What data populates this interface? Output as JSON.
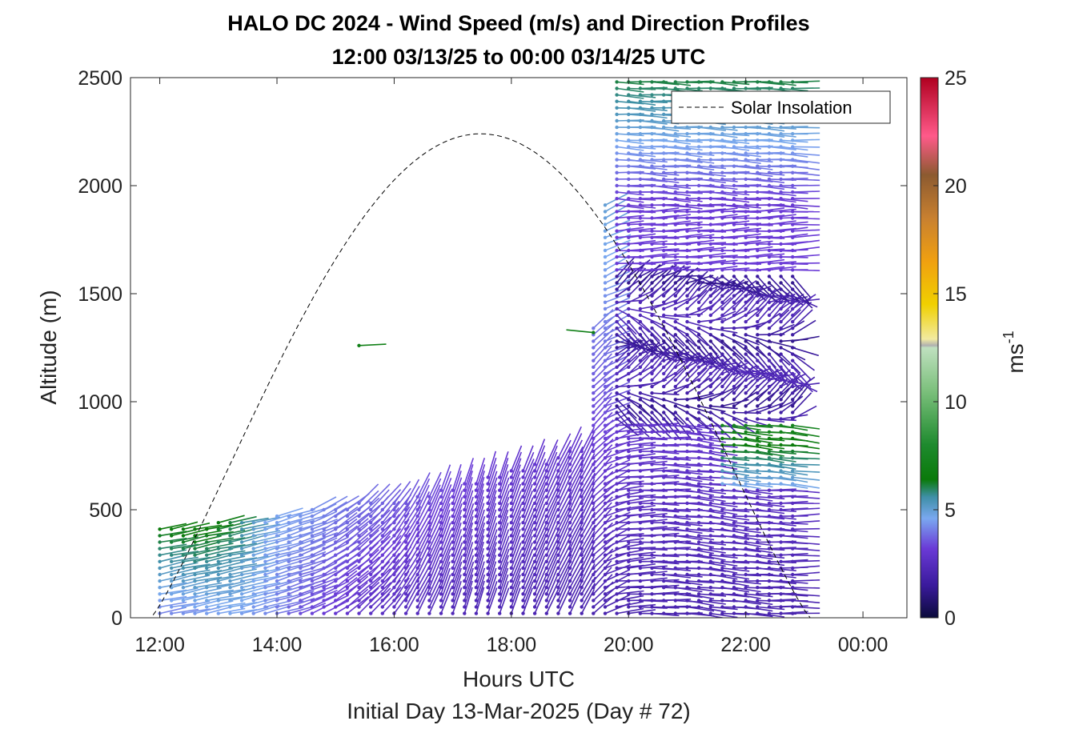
{
  "chart_data": {
    "type": "scatter",
    "subtype": "wind-barb-profile",
    "title": "HALO DC 2024 - Wind Speed (m/s) and Direction Profiles",
    "subtitle": "12:00 03/13/25 to 00:00 03/14/25  UTC",
    "xlabel": "Hours UTC",
    "xlabel2": "Initial Day 13-Mar-2025 (Day # 72)",
    "ylabel": "Altitude (m)",
    "xlim": [
      11.5,
      24.75
    ],
    "ylim": [
      0,
      2500
    ],
    "xticks": [
      {
        "value": 12,
        "label": "12:00"
      },
      {
        "value": 14,
        "label": "14:00"
      },
      {
        "value": 16,
        "label": "16:00"
      },
      {
        "value": 18,
        "label": "18:00"
      },
      {
        "value": 20,
        "label": "20:00"
      },
      {
        "value": 22,
        "label": "22:00"
      },
      {
        "value": 24,
        "label": "00:00"
      }
    ],
    "yticks": [
      0,
      500,
      1000,
      1500,
      2000,
      2500
    ],
    "grid": false,
    "legend": {
      "position": "top-right",
      "entries": [
        {
          "label": "Solar Insolation",
          "style": "dashed",
          "color": "#000000"
        }
      ]
    },
    "solar_insolation": {
      "rise_hour": 11.85,
      "set_hour": 23.1,
      "peak_hour": 17.35,
      "peak_altitude": 2240
    },
    "colorbar": {
      "label": "ms",
      "label_exponent": "-1",
      "min": 0,
      "max": 25,
      "ticks": [
        0,
        5,
        10,
        15,
        20,
        25
      ],
      "stops": [
        {
          "v": 0,
          "c": "#0b0b3b"
        },
        {
          "v": 1.5,
          "c": "#3a1a9c"
        },
        {
          "v": 3.2,
          "c": "#6a3ad6"
        },
        {
          "v": 4.6,
          "c": "#7aa8f0"
        },
        {
          "v": 5.6,
          "c": "#3e8fa6"
        },
        {
          "v": 6.4,
          "c": "#0a7a0a"
        },
        {
          "v": 8.0,
          "c": "#1e8a2e"
        },
        {
          "v": 10.5,
          "c": "#7cc07c"
        },
        {
          "v": 12.5,
          "c": "#bfe0bf"
        },
        {
          "v": 12.6,
          "c": "#b0b0b0"
        },
        {
          "v": 12.9,
          "c": "#f2eaa0"
        },
        {
          "v": 14.5,
          "c": "#f0d000"
        },
        {
          "v": 16.5,
          "c": "#f0a010"
        },
        {
          "v": 18.5,
          "c": "#c88030"
        },
        {
          "v": 20.5,
          "c": "#8c5a30"
        },
        {
          "v": 22.3,
          "c": "#ff5a8a"
        },
        {
          "v": 25,
          "c": "#b00020"
        }
      ]
    },
    "barbs": {
      "time_start": 12.0,
      "time_step": 0.2,
      "altitude_step": 30,
      "profiles": [
        {
          "t": 12.0,
          "top": 420,
          "u": 1.2,
          "v": 0.25,
          "spd_low": 4.0,
          "spd_high": 6.5
        },
        {
          "t": 12.6,
          "top": 430,
          "u": 1.2,
          "v": 0.25,
          "spd_low": 4.3,
          "spd_high": 6.8
        },
        {
          "t": 13.2,
          "top": 460,
          "u": 1.2,
          "v": 0.25,
          "spd_low": 4.5,
          "spd_high": 6.2
        },
        {
          "t": 13.8,
          "top": 470,
          "u": 1.1,
          "v": 0.3,
          "spd_low": 4.2,
          "spd_high": 4.6
        },
        {
          "t": 14.4,
          "top": 500,
          "u": 1.0,
          "v": 0.35,
          "spd_low": 3.4,
          "spd_high": 4.4
        },
        {
          "t": 15.0,
          "top": 520,
          "u": 0.8,
          "v": 0.55,
          "spd_low": 3.0,
          "spd_high": 4.0
        },
        {
          "t": 15.6,
          "top": 540,
          "u": 0.7,
          "v": 0.7,
          "spd_low": 2.6,
          "spd_high": 3.8
        },
        {
          "t": 16.2,
          "top": 560,
          "u": 0.5,
          "v": 0.85,
          "spd_low": 2.5,
          "spd_high": 3.6
        },
        {
          "t": 16.8,
          "top": 600,
          "u": 0.35,
          "v": 0.95,
          "spd_low": 2.3,
          "spd_high": 3.4
        },
        {
          "t": 17.4,
          "top": 640,
          "u": 0.3,
          "v": 1.0,
          "spd_low": 2.2,
          "spd_high": 3.2
        },
        {
          "t": 18.0,
          "top": 690,
          "u": 0.35,
          "v": 0.95,
          "spd_low": 2.2,
          "spd_high": 3.0
        },
        {
          "t": 18.6,
          "top": 740,
          "u": 0.4,
          "v": 0.9,
          "spd_low": 2.1,
          "spd_high": 3.0
        },
        {
          "t": 19.2,
          "top": 790,
          "u": 0.45,
          "v": 0.85,
          "spd_low": 2.0,
          "spd_high": 3.0
        },
        {
          "t": 19.8,
          "top": 2500,
          "u": 0.9,
          "v": 0.1,
          "spd_low": 2.0,
          "spd_high": 6.0
        },
        {
          "t": 20.4,
          "top": 2500,
          "u": 0.95,
          "v": 0.0,
          "spd_low": 2.0,
          "spd_high": 6.0
        },
        {
          "t": 21.0,
          "top": 2500,
          "u": 0.95,
          "v": -0.1,
          "spd_low": 2.0,
          "spd_high": 6.0
        },
        {
          "t": 21.6,
          "top": 2500,
          "u": 0.95,
          "v": -0.1,
          "spd_low": 2.0,
          "spd_high": 6.5
        },
        {
          "t": 22.2,
          "top": 2500,
          "u": 0.95,
          "v": -0.05,
          "spd_low": 2.0,
          "spd_high": 6.5
        },
        {
          "t": 22.8,
          "top": 2500,
          "u": 0.95,
          "v": 0.0,
          "spd_low": 2.0,
          "spd_high": 6.5
        }
      ],
      "isolated": [
        {
          "t": 15.4,
          "alt": 1260,
          "u": 1.0,
          "v": 0.05,
          "spd": 7.0
        },
        {
          "t": 19.4,
          "alt": 1320,
          "u": -1.0,
          "v": 0.1,
          "spd": 7.0
        }
      ]
    }
  }
}
